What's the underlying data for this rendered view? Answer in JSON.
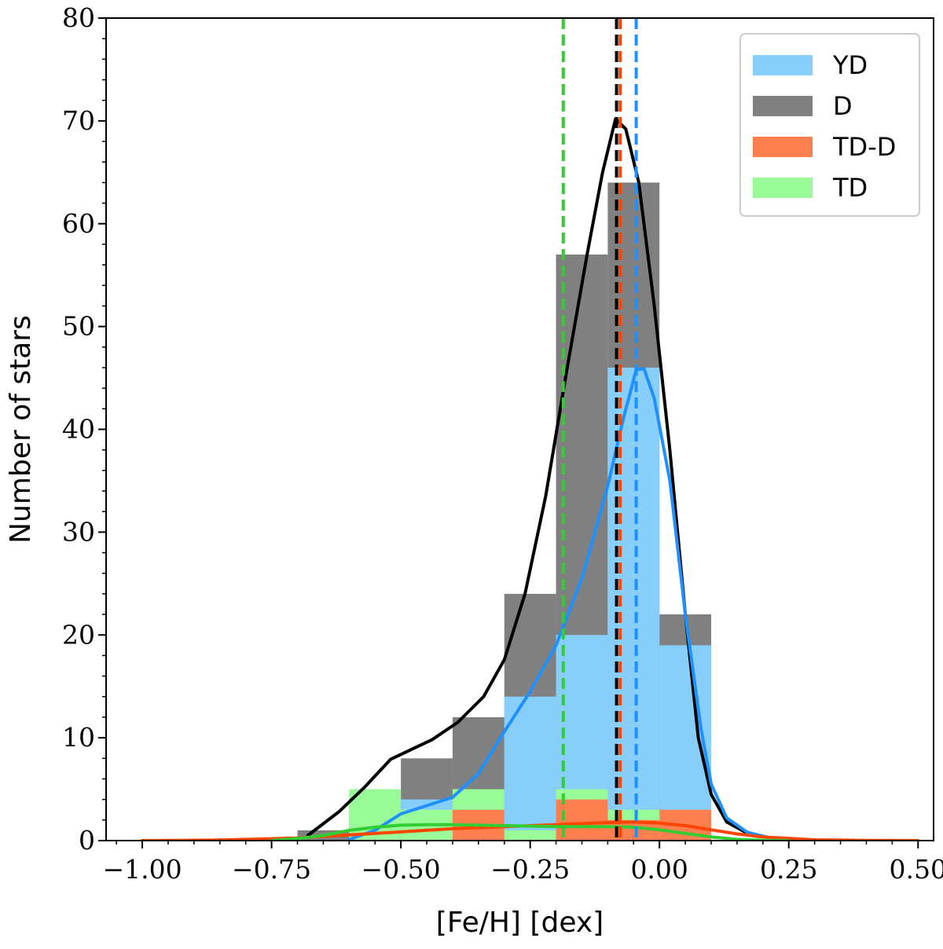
{
  "chart_data": {
    "type": "histogram",
    "xlabel": "[Fe/H] [dex]",
    "ylabel": "Number of stars",
    "xlim": [
      -1.07,
      0.53
    ],
    "ylim": [
      0,
      80
    ],
    "x_ticks": [
      -1.0,
      -0.75,
      -0.5,
      -0.25,
      0.0,
      0.25,
      0.5
    ],
    "x_tick_labels": [
      "−1.00",
      "−0.75",
      "−0.50",
      "−0.25",
      "0.00",
      "0.25",
      "0.50"
    ],
    "y_ticks": [
      0,
      10,
      20,
      30,
      40,
      50,
      60,
      70,
      80
    ],
    "y_tick_labels": [
      "0",
      "10",
      "20",
      "30",
      "40",
      "50",
      "60",
      "70",
      "80"
    ],
    "bin_edges": [
      -0.7,
      -0.6,
      -0.5,
      -0.4,
      -0.3,
      -0.2,
      -0.1,
      0.0,
      0.1
    ],
    "series": [
      {
        "name": "D",
        "color": "#808080",
        "counts": [
          1,
          4,
          8,
          12,
          24,
          57,
          64,
          22
        ]
      },
      {
        "name": "YD",
        "color": "#87cefa",
        "counts": [
          0,
          0,
          4,
          4,
          14,
          20,
          46,
          19
        ]
      },
      {
        "name": "TD",
        "color": "#98fb98",
        "counts": [
          0,
          5,
          3,
          5,
          1,
          5,
          3,
          0
        ]
      },
      {
        "name": "TD-D",
        "color": "#ff7f50",
        "counts": [
          0,
          0,
          0,
          3,
          0,
          4,
          2,
          3
        ]
      }
    ],
    "kde_curves": [
      {
        "name": "D",
        "color": "#000000",
        "points": [
          [
            -0.68,
            0.5
          ],
          [
            -0.62,
            2.8
          ],
          [
            -0.57,
            5.2
          ],
          [
            -0.52,
            7.9
          ],
          [
            -0.47,
            9.1
          ],
          [
            -0.44,
            9.8
          ],
          [
            -0.39,
            11.5
          ],
          [
            -0.34,
            14
          ],
          [
            -0.3,
            17.6
          ],
          [
            -0.26,
            24
          ],
          [
            -0.22,
            33.5
          ],
          [
            -0.18,
            45.5
          ],
          [
            -0.14,
            57
          ],
          [
            -0.11,
            65
          ],
          [
            -0.085,
            70.2
          ],
          [
            -0.065,
            69.2
          ],
          [
            -0.04,
            64
          ],
          [
            -0.01,
            52
          ],
          [
            0.02,
            38
          ],
          [
            0.05,
            22
          ],
          [
            0.075,
            10
          ],
          [
            0.1,
            4.5
          ],
          [
            0.13,
            1.8
          ],
          [
            0.17,
            0.7
          ],
          [
            0.22,
            0.2
          ]
        ]
      },
      {
        "name": "YD",
        "color": "#1e90ff",
        "points": [
          [
            -0.6,
            0.1
          ],
          [
            -0.55,
            1
          ],
          [
            -0.5,
            2.6
          ],
          [
            -0.45,
            3.4
          ],
          [
            -0.4,
            4.2
          ],
          [
            -0.35,
            6.5
          ],
          [
            -0.3,
            10.6
          ],
          [
            -0.25,
            14.5
          ],
          [
            -0.2,
            19
          ],
          [
            -0.15,
            25.5
          ],
          [
            -0.1,
            34.5
          ],
          [
            -0.07,
            41
          ],
          [
            -0.045,
            45.8
          ],
          [
            -0.03,
            45.9
          ],
          [
            -0.01,
            43
          ],
          [
            0.02,
            35
          ],
          [
            0.05,
            22
          ],
          [
            0.08,
            11
          ],
          [
            0.1,
            5.5
          ],
          [
            0.13,
            2.2
          ],
          [
            0.17,
            0.8
          ],
          [
            0.22,
            0.2
          ],
          [
            0.27,
            0
          ]
        ]
      },
      {
        "name": "TD-D",
        "color": "#ff4500",
        "points": [
          [
            -1.0,
            0
          ],
          [
            -0.85,
            0.05
          ],
          [
            -0.7,
            0.25
          ],
          [
            -0.6,
            0.55
          ],
          [
            -0.5,
            0.85
          ],
          [
            -0.4,
            1.15
          ],
          [
            -0.3,
            1.35
          ],
          [
            -0.2,
            1.55
          ],
          [
            -0.1,
            1.75
          ],
          [
            -0.05,
            1.8
          ],
          [
            0.0,
            1.7
          ],
          [
            0.05,
            1.45
          ],
          [
            0.1,
            1.05
          ],
          [
            0.15,
            0.65
          ],
          [
            0.2,
            0.35
          ],
          [
            0.3,
            0.08
          ],
          [
            0.4,
            0.02
          ],
          [
            0.5,
            0
          ]
        ]
      },
      {
        "name": "TD",
        "color": "#32cd32",
        "points": [
          [
            -0.75,
            0
          ],
          [
            -0.7,
            0.2
          ],
          [
            -0.65,
            0.5
          ],
          [
            -0.6,
            1.0
          ],
          [
            -0.55,
            1.3
          ],
          [
            -0.5,
            1.5
          ],
          [
            -0.45,
            1.55
          ],
          [
            -0.4,
            1.55
          ],
          [
            -0.3,
            1.45
          ],
          [
            -0.2,
            1.35
          ],
          [
            -0.1,
            1.35
          ],
          [
            -0.05,
            1.3
          ],
          [
            0.0,
            1.05
          ],
          [
            0.05,
            0.7
          ],
          [
            0.1,
            0.35
          ],
          [
            0.15,
            0.12
          ],
          [
            0.2,
            0.03
          ],
          [
            0.25,
            0
          ]
        ]
      }
    ],
    "mean_lines": [
      {
        "name": "TD",
        "color": "#32cd32",
        "x": -0.186
      },
      {
        "name": "D",
        "color": "#000000",
        "x": -0.083
      },
      {
        "name": "TD-D",
        "color": "#ff4500",
        "x": -0.076
      },
      {
        "name": "YD",
        "color": "#1e90ff",
        "x": -0.045
      }
    ],
    "legend": {
      "placement": "top-right",
      "entries": [
        {
          "label": "YD",
          "color": "#87cefa"
        },
        {
          "label": "D",
          "color": "#808080"
        },
        {
          "label": "TD-D",
          "color": "#ff7f50"
        },
        {
          "label": "TD",
          "color": "#98fb98"
        }
      ]
    }
  }
}
